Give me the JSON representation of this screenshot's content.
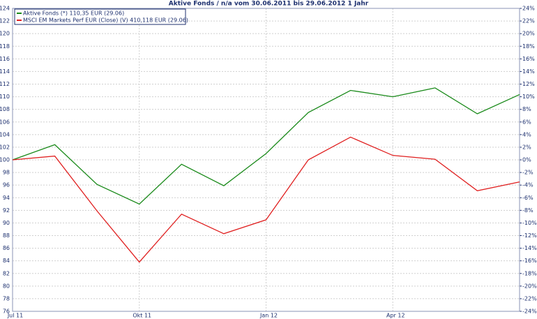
{
  "chart_data": {
    "type": "line",
    "title": "Aktive Fonds / n/a vom 30.06.2011 bis 29.06.2012 1 Jahr",
    "categories": [
      "Jul 11",
      null,
      null,
      "Okt 11",
      null,
      null,
      "Jan 12",
      null,
      null,
      "Apr 12",
      null,
      null,
      null
    ],
    "series": [
      {
        "name": "Aktive Fonds (*) 110,35 EUR (29.06)",
        "color": "#1a8a1a",
        "values": [
          100,
          102.4,
          96.1,
          93.0,
          99.3,
          95.9,
          101.0,
          107.5,
          111.0,
          110.0,
          111.4,
          107.3,
          110.35
        ]
      },
      {
        "name": "MSCI EM Markets Perf EUR (Close) (V) 410,118 EUR (29.06)",
        "color": "#e02020",
        "values": [
          100,
          100.6,
          91.9,
          83.8,
          91.4,
          88.3,
          90.5,
          100.0,
          103.6,
          100.7,
          100.1,
          95.1,
          96.5
        ]
      }
    ],
    "ylim": [
      76,
      124
    ],
    "yticks": [
      76,
      78,
      80,
      82,
      84,
      86,
      88,
      90,
      92,
      94,
      96,
      98,
      100,
      102,
      104,
      106,
      108,
      110,
      112,
      114,
      116,
      118,
      120,
      122,
      124
    ],
    "y2lim": [
      -24,
      24
    ],
    "y2ticks": [
      {
        "value": -24,
        "label": "-24%"
      },
      {
        "value": -22,
        "label": "-22%"
      },
      {
        "value": -20,
        "label": "-20%"
      },
      {
        "value": -18,
        "label": "-18%"
      },
      {
        "value": -16,
        "label": "-16%"
      },
      {
        "value": -14,
        "label": "-14%"
      },
      {
        "value": -12,
        "label": "-12%"
      },
      {
        "value": -10,
        "label": "-10%"
      },
      {
        "value": -8,
        "label": "-8%"
      },
      {
        "value": -6,
        "label": "-6%"
      },
      {
        "value": -4,
        "label": "-4%"
      },
      {
        "value": -2,
        "label": "-2%"
      },
      {
        "value": 0,
        "label": "0%"
      },
      {
        "value": 2,
        "label": "2%"
      },
      {
        "value": 4,
        "label": "4%"
      },
      {
        "value": 6,
        "label": "6%"
      },
      {
        "value": 8,
        "label": "8%"
      },
      {
        "value": 10,
        "label": "10%"
      },
      {
        "value": 12,
        "label": "12%"
      },
      {
        "value": 14,
        "label": "14%"
      },
      {
        "value": 16,
        "label": "16%"
      },
      {
        "value": 18,
        "label": "18%"
      },
      {
        "value": 20,
        "label": "20%"
      },
      {
        "value": 22,
        "label": "22%"
      },
      {
        "value": 24,
        "label": "24%"
      }
    ],
    "grid": true,
    "legend": "top-left"
  }
}
